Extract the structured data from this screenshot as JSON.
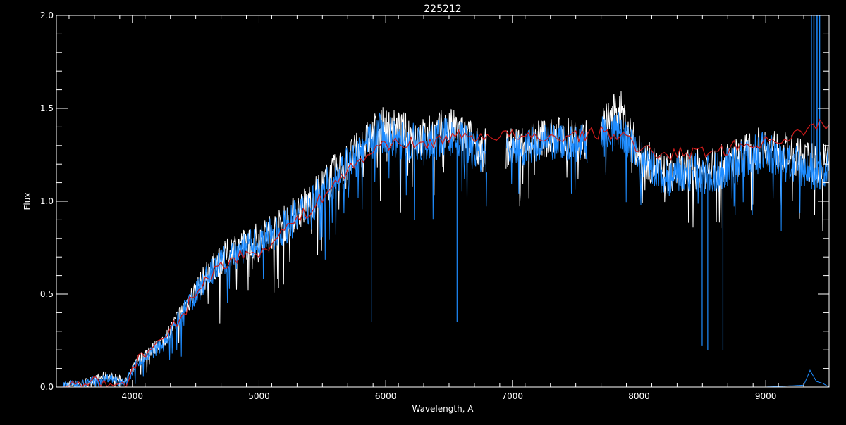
{
  "chart_data": {
    "type": "line",
    "title": "225212",
    "xlabel": "Wavelength, A",
    "ylabel": "Flux",
    "xlim": [
      3400,
      9500
    ],
    "ylim": [
      0.0,
      2.0
    ],
    "xticks": [
      4000,
      5000,
      6000,
      7000,
      8000,
      9000
    ],
    "xtick_labels": [
      "4000",
      "5000",
      "6000",
      "7000",
      "8000",
      "9000"
    ],
    "yticks": [
      0.0,
      0.5,
      1.0,
      1.5,
      2.0
    ],
    "ytick_labels": [
      "0.0",
      "0.5",
      "1.0",
      "1.5",
      "2.0"
    ],
    "grid": false,
    "background": "#000000",
    "axes_color": "#ffffff",
    "series": [
      {
        "color": "#ffffff",
        "x": [
          3450,
          3600,
          3800,
          3950,
          4050,
          4250,
          4400,
          4600,
          4800,
          5000,
          5200,
          5400,
          5600,
          5800,
          5950,
          6100,
          6300,
          6500,
          6800,
          6950,
          7200,
          7400,
          7600,
          7700,
          7850,
          8000,
          8200,
          8400,
          8600,
          8800,
          9000,
          9200,
          9400,
          9500
        ],
        "y": [
          0.01,
          0.02,
          0.06,
          0.03,
          0.15,
          0.25,
          0.42,
          0.62,
          0.75,
          0.8,
          0.88,
          1.0,
          1.15,
          1.28,
          1.4,
          1.38,
          1.34,
          1.4,
          1.28,
          1.28,
          1.34,
          1.35,
          1.33,
          1.4,
          1.5,
          1.25,
          1.15,
          1.17,
          1.18,
          1.25,
          1.3,
          1.25,
          1.2,
          1.22
        ],
        "gaps": [
          [
            6800,
            6950
          ],
          [
            7590,
            7700
          ]
        ]
      },
      {
        "color": "#1e8cff",
        "x": [
          3450,
          3600,
          3800,
          3950,
          4050,
          4250,
          4400,
          4600,
          4800,
          5000,
          5200,
          5400,
          5600,
          5800,
          5950,
          6100,
          6300,
          6500,
          6800,
          6950,
          7200,
          7400,
          7600,
          7700,
          7850,
          8000,
          8200,
          8400,
          8600,
          8800,
          9000,
          9200,
          9400,
          9500
        ],
        "y": [
          0.01,
          0.02,
          0.05,
          0.03,
          0.14,
          0.23,
          0.4,
          0.6,
          0.73,
          0.78,
          0.86,
          0.98,
          1.13,
          1.25,
          1.37,
          1.33,
          1.3,
          1.35,
          1.25,
          1.27,
          1.3,
          1.32,
          1.31,
          1.35,
          1.38,
          1.22,
          1.12,
          1.15,
          1.15,
          1.22,
          1.27,
          1.2,
          1.15,
          1.18
        ],
        "gaps": [
          [
            6800,
            6950
          ],
          [
            7590,
            7700
          ]
        ],
        "absorption_lines": [
          {
            "x": 5890,
            "y": 0.35
          },
          {
            "x": 6563,
            "y": 0.35
          },
          {
            "x": 8498,
            "y": 0.22
          },
          {
            "x": 8542,
            "y": 0.2
          },
          {
            "x": 8662,
            "y": 0.2
          }
        ],
        "telluric_spike": {
          "x": 9380,
          "y": 2.0
        }
      },
      {
        "color": "#cc1a1a",
        "x": [
          3450,
          3600,
          3800,
          3950,
          4050,
          4250,
          4400,
          4600,
          4800,
          5000,
          5200,
          5400,
          5600,
          5800,
          5950,
          6100,
          6300,
          6500,
          6800,
          6950,
          7200,
          7400,
          7600,
          7700,
          7850,
          8000,
          8200,
          8400,
          8600,
          8800,
          9000,
          9200,
          9400,
          9500
        ],
        "y": [
          0.01,
          0.02,
          0.03,
          0.01,
          0.16,
          0.25,
          0.4,
          0.6,
          0.7,
          0.72,
          0.85,
          0.95,
          1.1,
          1.22,
          1.3,
          1.32,
          1.3,
          1.35,
          1.35,
          1.36,
          1.33,
          1.35,
          1.36,
          1.37,
          1.36,
          1.28,
          1.25,
          1.26,
          1.27,
          1.3,
          1.32,
          1.35,
          1.4,
          1.43
        ]
      },
      {
        "color": "#1e8cff",
        "x": [
          3450,
          9000,
          9300,
          9350,
          9400,
          9450,
          9500
        ],
        "y": [
          0.0,
          0.0,
          0.01,
          0.09,
          0.03,
          0.02,
          0.0
        ]
      }
    ]
  }
}
